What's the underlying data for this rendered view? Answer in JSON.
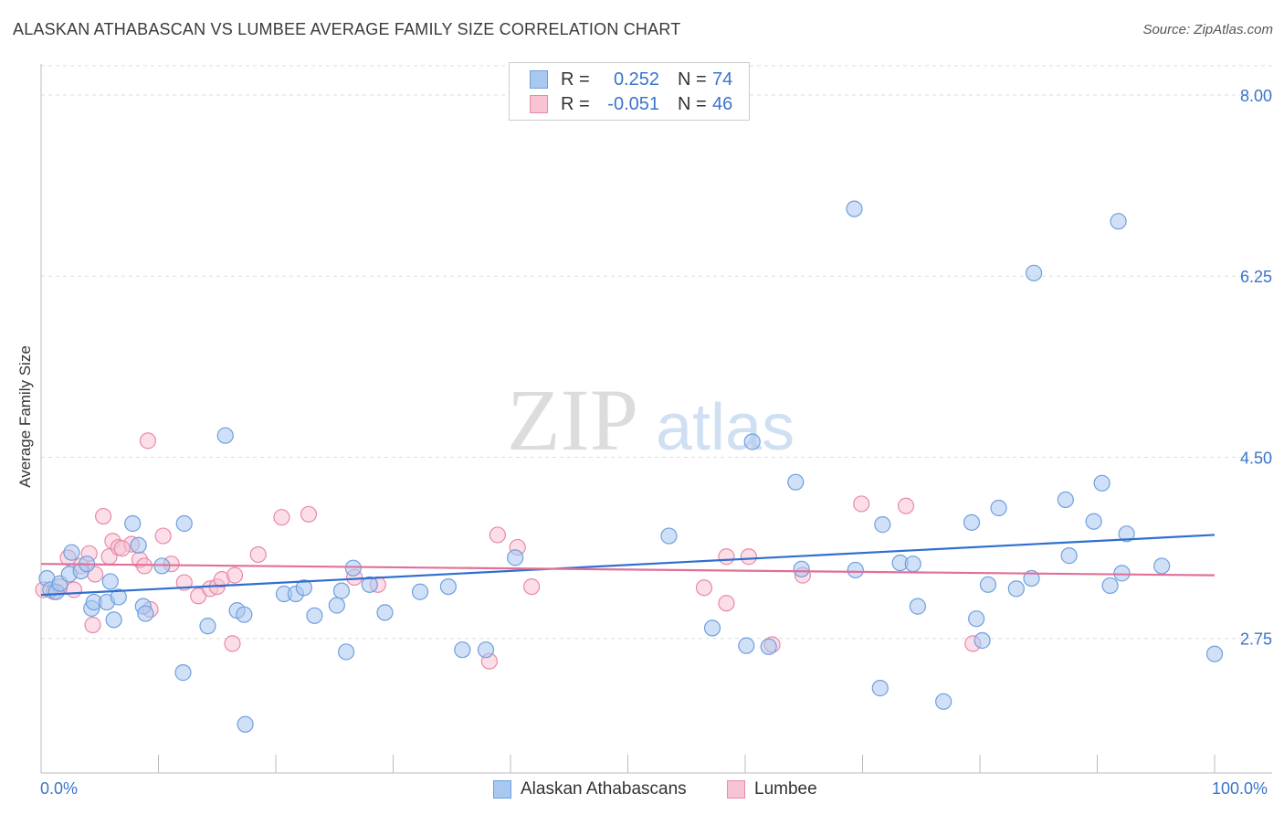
{
  "title": "ALASKAN ATHABASCAN VS LUMBEE AVERAGE FAMILY SIZE CORRELATION CHART",
  "source": "Source: ZipAtlas.com",
  "watermark": {
    "zip": "ZIP",
    "atlas": "atlas"
  },
  "legend": {
    "rows": [
      {
        "r_label": "R =",
        "r_value": "0.252",
        "n_label": "N =",
        "n_value": "74",
        "color": "#a9c8f0",
        "border": "#6f9fde"
      },
      {
        "r_label": "R =",
        "r_value": "-0.051",
        "n_label": "N =",
        "n_value": "46",
        "color": "#f8c3d3",
        "border": "#e88aa8"
      }
    ]
  },
  "bottom_legend": [
    {
      "label": "Alaskan Athabascans",
      "color": "#a9c8f0",
      "border": "#6f9fde"
    },
    {
      "label": "Lumbee",
      "color": "#f8c3d3",
      "border": "#e88aa8"
    }
  ],
  "colors": {
    "blue_line": "#2f6fcf",
    "pink_line": "#e0709a",
    "tick_text": "#3a74cc",
    "grid": "#dddddd"
  },
  "chart_data": {
    "type": "scatter",
    "title": "ALASKAN ATHABASCAN VS LUMBEE AVERAGE FAMILY SIZE CORRELATION CHART",
    "xlabel": "",
    "ylabel": "Average Family Size",
    "xlim": [
      0,
      100
    ],
    "ylim": [
      1.45,
      8.3
    ],
    "x_tick_labels": [
      "0.0%",
      "100.0%"
    ],
    "y_ticks": [
      2.75,
      4.5,
      6.25,
      8.0
    ],
    "y_tick_labels": [
      "2.75",
      "4.50",
      "6.25",
      "8.00"
    ],
    "grid": true,
    "series": [
      {
        "name": "Alaskan Athabascans",
        "trend": [
          [
            0,
            3.17
          ],
          [
            100,
            3.75
          ]
        ],
        "points": [
          [
            0.5,
            3.33
          ],
          [
            0.8,
            3.22
          ],
          [
            1.3,
            3.2
          ],
          [
            1.6,
            3.28
          ],
          [
            2.4,
            3.37
          ],
          [
            2.6,
            3.58
          ],
          [
            3.4,
            3.4
          ],
          [
            3.9,
            3.47
          ],
          [
            4.3,
            3.04
          ],
          [
            4.5,
            3.1
          ],
          [
            5.6,
            3.1
          ],
          [
            5.9,
            3.3
          ],
          [
            6.2,
            2.93
          ],
          [
            6.6,
            3.15
          ],
          [
            7.8,
            3.86
          ],
          [
            8.3,
            3.65
          ],
          [
            8.7,
            3.06
          ],
          [
            8.9,
            2.99
          ],
          [
            10.3,
            3.45
          ],
          [
            12.2,
            3.86
          ],
          [
            12.1,
            2.42
          ],
          [
            14.2,
            2.87
          ],
          [
            15.7,
            4.71
          ],
          [
            16.7,
            3.02
          ],
          [
            17.3,
            2.98
          ],
          [
            17.4,
            1.92
          ],
          [
            20.7,
            3.18
          ],
          [
            21.7,
            3.18
          ],
          [
            22.4,
            3.24
          ],
          [
            23.3,
            2.97
          ],
          [
            25.2,
            3.07
          ],
          [
            25.6,
            3.21
          ],
          [
            26.0,
            2.62
          ],
          [
            26.6,
            3.43
          ],
          [
            28.0,
            3.27
          ],
          [
            29.3,
            3.0
          ],
          [
            32.3,
            3.2
          ],
          [
            34.7,
            3.25
          ],
          [
            35.9,
            2.64
          ],
          [
            37.9,
            2.64
          ],
          [
            40.4,
            3.53
          ],
          [
            53.5,
            3.74
          ],
          [
            57.2,
            2.85
          ],
          [
            60.6,
            4.65
          ],
          [
            62.0,
            2.67
          ],
          [
            64.3,
            4.26
          ],
          [
            64.8,
            3.42
          ],
          [
            69.3,
            6.9
          ],
          [
            69.4,
            3.41
          ],
          [
            71.5,
            2.27
          ],
          [
            71.7,
            3.85
          ],
          [
            73.2,
            3.48
          ],
          [
            74.3,
            3.47
          ],
          [
            74.7,
            3.06
          ],
          [
            76.9,
            2.14
          ],
          [
            79.3,
            3.87
          ],
          [
            79.7,
            2.94
          ],
          [
            80.2,
            2.73
          ],
          [
            80.7,
            3.27
          ],
          [
            81.6,
            4.01
          ],
          [
            83.1,
            3.23
          ],
          [
            84.4,
            3.33
          ],
          [
            84.6,
            6.28
          ],
          [
            87.3,
            4.09
          ],
          [
            87.6,
            3.55
          ],
          [
            89.7,
            3.88
          ],
          [
            90.4,
            4.25
          ],
          [
            91.1,
            3.26
          ],
          [
            91.8,
            6.78
          ],
          [
            92.1,
            3.38
          ],
          [
            92.5,
            3.76
          ],
          [
            95.5,
            3.45
          ],
          [
            100.0,
            2.6
          ],
          [
            60.1,
            2.68
          ]
        ]
      },
      {
        "name": "Lumbee",
        "trend": [
          [
            0,
            3.47
          ],
          [
            100,
            3.36
          ]
        ],
        "points": [
          [
            0.2,
            3.22
          ],
          [
            1.1,
            3.2
          ],
          [
            1.6,
            3.25
          ],
          [
            2.3,
            3.53
          ],
          [
            2.8,
            3.22
          ],
          [
            3.4,
            3.45
          ],
          [
            4.1,
            3.57
          ],
          [
            4.4,
            2.88
          ],
          [
            4.6,
            3.37
          ],
          [
            5.3,
            3.93
          ],
          [
            5.8,
            3.54
          ],
          [
            6.1,
            3.69
          ],
          [
            6.6,
            3.63
          ],
          [
            7.7,
            3.66
          ],
          [
            8.4,
            3.51
          ],
          [
            8.8,
            3.45
          ],
          [
            9.3,
            3.03
          ],
          [
            9.1,
            4.66
          ],
          [
            10.4,
            3.74
          ],
          [
            11.1,
            3.47
          ],
          [
            12.2,
            3.29
          ],
          [
            13.4,
            3.16
          ],
          [
            14.4,
            3.23
          ],
          [
            15.0,
            3.25
          ],
          [
            15.4,
            3.32
          ],
          [
            16.3,
            2.7
          ],
          [
            16.5,
            3.36
          ],
          [
            18.5,
            3.56
          ],
          [
            20.5,
            3.92
          ],
          [
            22.8,
            3.95
          ],
          [
            26.7,
            3.34
          ],
          [
            28.7,
            3.27
          ],
          [
            38.2,
            2.53
          ],
          [
            38.9,
            3.75
          ],
          [
            40.6,
            3.63
          ],
          [
            41.8,
            3.25
          ],
          [
            56.5,
            3.24
          ],
          [
            58.4,
            3.09
          ],
          [
            58.4,
            3.54
          ],
          [
            60.3,
            3.54
          ],
          [
            62.3,
            2.69
          ],
          [
            64.9,
            3.36
          ],
          [
            69.9,
            4.05
          ],
          [
            73.7,
            4.03
          ],
          [
            79.4,
            2.7
          ],
          [
            6.9,
            3.62
          ]
        ]
      }
    ]
  }
}
